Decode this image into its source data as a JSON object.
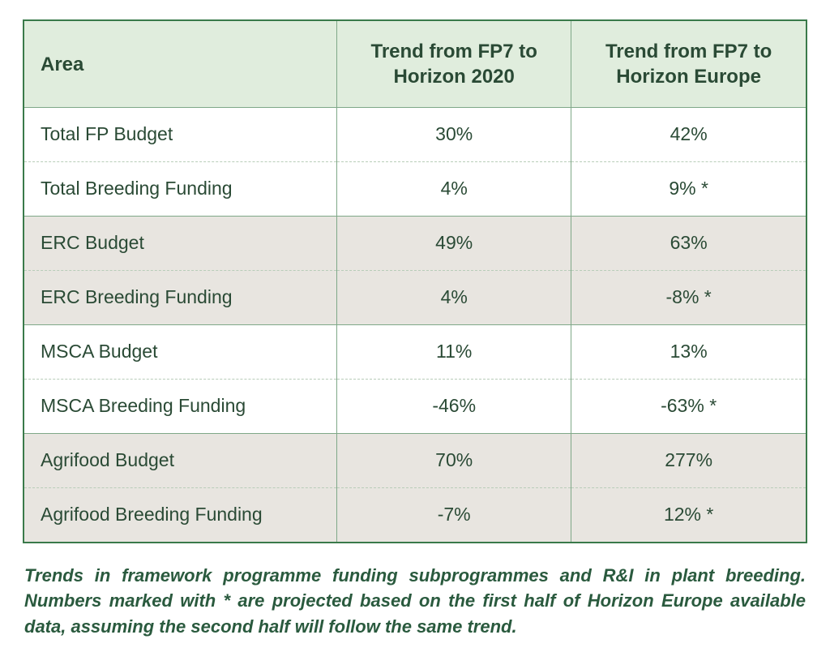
{
  "table": {
    "columns": [
      {
        "label": "Area",
        "align": "left",
        "width_pct": 40
      },
      {
        "label": "Trend from FP7 to Horizon 2020",
        "align": "center",
        "width_pct": 30
      },
      {
        "label": "Trend from FP7 to Horizon Europe",
        "align": "center",
        "width_pct": 30
      }
    ],
    "rows": [
      {
        "cells": [
          "Total FP Budget",
          "30%",
          "42%"
        ],
        "shaded": false,
        "group_start": true
      },
      {
        "cells": [
          "Total Breeding Funding",
          "4%",
          "9% *"
        ],
        "shaded": false,
        "group_start": false
      },
      {
        "cells": [
          "ERC Budget",
          "49%",
          "63%"
        ],
        "shaded": true,
        "group_start": true
      },
      {
        "cells": [
          "ERC Breeding Funding",
          "4%",
          "-8% *"
        ],
        "shaded": true,
        "group_start": false
      },
      {
        "cells": [
          "MSCA Budget",
          "11%",
          "13%"
        ],
        "shaded": false,
        "group_start": true
      },
      {
        "cells": [
          "MSCA Breeding Funding",
          "-46%",
          "-63% *"
        ],
        "shaded": false,
        "group_start": false
      },
      {
        "cells": [
          "Agrifood Budget",
          "70%",
          "277%"
        ],
        "shaded": true,
        "group_start": true
      },
      {
        "cells": [
          "Agrifood Breeding Funding",
          "-7%",
          "12% *"
        ],
        "shaded": true,
        "group_start": false
      }
    ],
    "colors": {
      "border": "#3a7a4a",
      "cell_border": "#7fa888",
      "dashed_border": "#b8cdb9",
      "header_bg": "#e0eddd",
      "shaded_bg": "#e8e5e0",
      "text": "#2a4a35",
      "caption_text": "#2a5a3e"
    },
    "header_fontsize": 24,
    "cell_fontsize": 23,
    "caption_fontsize": 22
  },
  "caption": "Trends in framework programme funding subprogrammes and R&I in plant breeding. Numbers marked with * are projected based on the first half of Horizon Europe available data, assuming the second half will follow the same trend."
}
